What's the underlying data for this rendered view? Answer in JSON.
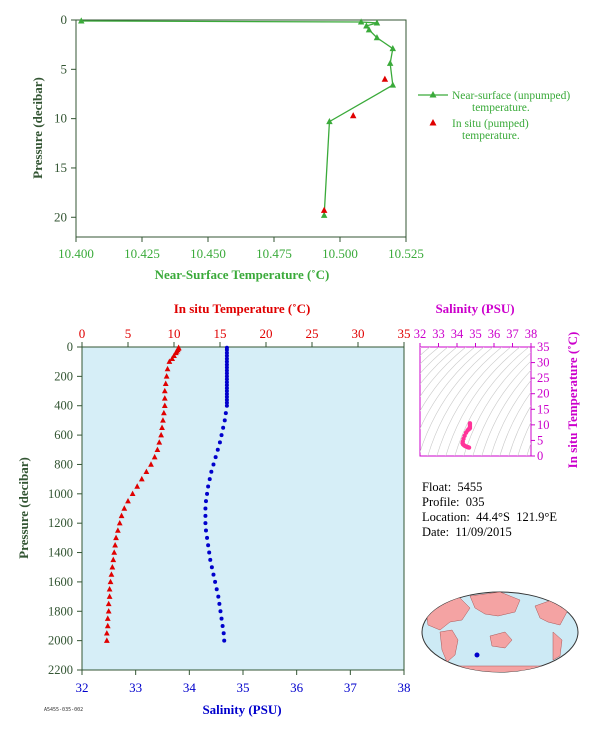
{
  "colors": {
    "green": "#3aaa3a",
    "dark_green": "#335533",
    "red": "#e00000",
    "blue": "#0000cc",
    "magenta": "#cc00cc",
    "pink": "#ff3399",
    "panel_bg": "#d6eef7"
  },
  "chart_data": [
    {
      "type": "line",
      "name": "near-surface",
      "xlabel": "Near-Surface Temperature (˚C)",
      "ylabel": "Pressure (decibar)",
      "xlim": [
        10.4,
        10.525
      ],
      "ylim": [
        22,
        0
      ],
      "y_inverted": true,
      "x_ticks": [
        "10.400",
        "10.425",
        "10.450",
        "10.475",
        "10.500",
        "10.525"
      ],
      "y_ticks": [
        "0",
        "5",
        "10",
        "15",
        "20"
      ],
      "legend_position": "right",
      "series": [
        {
          "name": "Near-surface (unpumped) temperature.",
          "marker": "triangle",
          "color": "#3aaa3a",
          "points": [
            [
              10.402,
              0.1
            ],
            [
              10.508,
              0.2
            ],
            [
              10.514,
              0.3
            ],
            [
              10.51,
              0.6
            ],
            [
              10.511,
              1.0
            ],
            [
              10.514,
              1.8
            ],
            [
              10.52,
              2.9
            ],
            [
              10.519,
              4.4
            ],
            [
              10.52,
              6.6
            ],
            [
              10.496,
              10.3
            ],
            [
              10.494,
              19.8
            ]
          ]
        },
        {
          "name": "In situ (pumped) temperature.",
          "marker": "triangle",
          "color": "#e00000",
          "points": [
            [
              10.517,
              6.0
            ],
            [
              10.505,
              9.7
            ],
            [
              10.494,
              19.3
            ]
          ]
        }
      ]
    },
    {
      "type": "scatter",
      "name": "profile",
      "top_xlabel": "In situ Temperature (˚C)",
      "bottom_xlabel": "Salinity (PSU)",
      "ylabel": "Pressure (decibar)",
      "temp_xlim": [
        0,
        35
      ],
      "sal_xlim": [
        32,
        38
      ],
      "ylim": [
        2200,
        0
      ],
      "y_inverted": true,
      "temp_ticks": [
        "0",
        "5",
        "10",
        "15",
        "20",
        "25",
        "30",
        "35"
      ],
      "sal_ticks": [
        "32",
        "33",
        "34",
        "35",
        "36",
        "37",
        "38"
      ],
      "y_ticks": [
        "0",
        "200",
        "400",
        "600",
        "800",
        "1000",
        "1200",
        "1400",
        "1600",
        "1800",
        "2000",
        "2200"
      ],
      "temperature": {
        "color": "#e00000",
        "marker": "triangle",
        "pressure": [
          5,
          10,
          20,
          30,
          40,
          60,
          80,
          100,
          150,
          200,
          250,
          300,
          350,
          400,
          450,
          500,
          550,
          600,
          650,
          700,
          750,
          800,
          850,
          900,
          950,
          1000,
          1050,
          1100,
          1150,
          1200,
          1250,
          1300,
          1350,
          1400,
          1450,
          1500,
          1550,
          1600,
          1650,
          1700,
          1750,
          1800,
          1850,
          1900,
          1950,
          2000
        ],
        "values": [
          10.5,
          10.5,
          10.4,
          10.3,
          10.2,
          10.0,
          9.8,
          9.5,
          9.3,
          9.2,
          9.1,
          9.0,
          9.0,
          9.0,
          8.9,
          8.8,
          8.7,
          8.6,
          8.4,
          8.2,
          7.9,
          7.5,
          7.0,
          6.5,
          6.0,
          5.5,
          5.0,
          4.6,
          4.3,
          4.1,
          3.9,
          3.7,
          3.6,
          3.5,
          3.4,
          3.3,
          3.2,
          3.1,
          3.0,
          3.0,
          2.9,
          2.9,
          2.8,
          2.8,
          2.7,
          2.7
        ]
      },
      "salinity": {
        "color": "#0000cc",
        "marker": "dot",
        "pressure": [
          5,
          20,
          40,
          60,
          80,
          100,
          120,
          140,
          160,
          180,
          200,
          220,
          240,
          260,
          280,
          300,
          320,
          340,
          360,
          380,
          400,
          450,
          500,
          550,
          600,
          650,
          700,
          750,
          800,
          850,
          900,
          950,
          1000,
          1050,
          1100,
          1150,
          1200,
          1250,
          1300,
          1350,
          1400,
          1450,
          1500,
          1550,
          1600,
          1650,
          1700,
          1750,
          1800,
          1850,
          1900,
          1950,
          2000
        ],
        "values": [
          34.7,
          34.7,
          34.7,
          34.7,
          34.7,
          34.7,
          34.7,
          34.7,
          34.7,
          34.7,
          34.7,
          34.7,
          34.7,
          34.7,
          34.7,
          34.7,
          34.7,
          34.7,
          34.7,
          34.7,
          34.7,
          34.68,
          34.66,
          34.63,
          34.6,
          34.57,
          34.53,
          34.49,
          34.45,
          34.41,
          34.38,
          34.35,
          34.33,
          34.31,
          34.3,
          34.3,
          34.3,
          34.31,
          34.33,
          34.35,
          34.37,
          34.39,
          34.42,
          34.45,
          34.48,
          34.51,
          34.54,
          34.56,
          34.58,
          34.6,
          34.62,
          34.64,
          34.65
        ]
      }
    },
    {
      "type": "scatter",
      "name": "ts",
      "top_xlabel": "Salinity (PSU)",
      "right_ylabel": "In situ Temperature (˚C)",
      "xlim": [
        32,
        38
      ],
      "ylim": [
        0,
        35
      ],
      "x_ticks": [
        "32",
        "33",
        "34",
        "35",
        "36",
        "37",
        "38"
      ],
      "y_ticks": [
        "0",
        "5",
        "10",
        "15",
        "20",
        "25",
        "30",
        "35"
      ],
      "color": "#ff3399",
      "points": [
        [
          34.7,
          10.5
        ],
        [
          34.7,
          10.0
        ],
        [
          34.7,
          9.5
        ],
        [
          34.7,
          9.0
        ],
        [
          34.68,
          8.8
        ],
        [
          34.63,
          8.6
        ],
        [
          34.57,
          8.2
        ],
        [
          34.49,
          7.5
        ],
        [
          34.41,
          6.5
        ],
        [
          34.35,
          5.5
        ],
        [
          34.31,
          4.6
        ],
        [
          34.3,
          4.1
        ],
        [
          34.33,
          3.7
        ],
        [
          34.39,
          3.4
        ],
        [
          34.45,
          3.2
        ],
        [
          34.51,
          3.0
        ],
        [
          34.56,
          2.9
        ],
        [
          34.6,
          2.8
        ],
        [
          34.65,
          2.7
        ]
      ]
    }
  ],
  "info": {
    "float_label": "Float:",
    "float_value": "5455",
    "profile_label": "Profile:",
    "profile_value": "035",
    "location_label": "Location:",
    "location_value": "44.4°S  121.9°E",
    "date_label": "Date:",
    "date_value": "11/09/2015"
  },
  "footer_tag": "A5455-035-002"
}
